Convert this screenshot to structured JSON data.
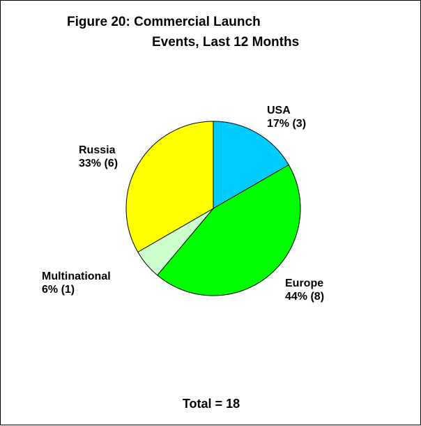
{
  "chart_data": {
    "type": "pie",
    "title": [
      "Figure 20: Commercial Launch",
      "Events, Last 12 Months"
    ],
    "slices": [
      {
        "name": "USA",
        "value": 3,
        "label": "17% (3)",
        "color": "#00CCFF"
      },
      {
        "name": "Europe",
        "value": 8,
        "label": "44% (8)",
        "color": "#00FF00"
      },
      {
        "name": "Multinational",
        "value": 1,
        "label": "6% (1)",
        "color": "#CCFFCC"
      },
      {
        "name": "Russia",
        "value": 6,
        "label": "33% (6)",
        "color": "#FFFF00"
      }
    ],
    "footer": "Total = 18"
  }
}
